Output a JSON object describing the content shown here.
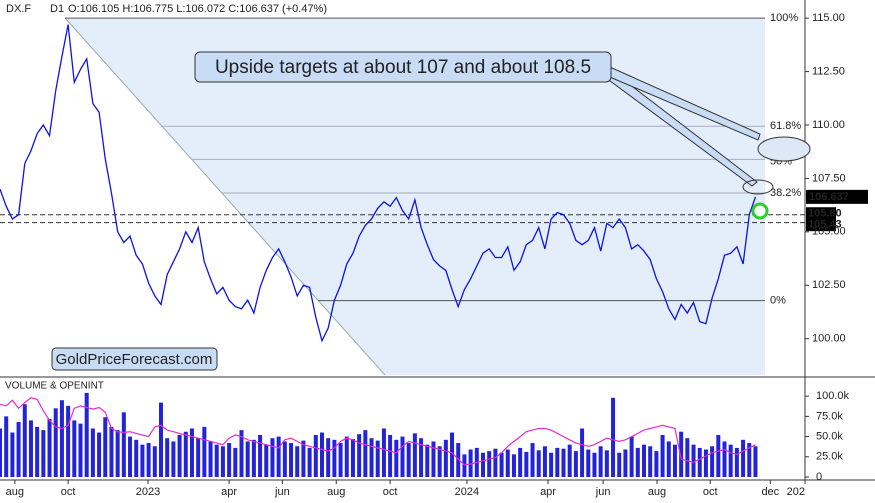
{
  "chart_data": [
    {
      "type": "line",
      "title": "DX.F",
      "subtitle": "D1",
      "ohlc": "O:106.105 H:106.775 L:106.072 C:106.637 (+0.47%)",
      "color": "#0a14e6",
      "xlim": [
        0,
        130
      ],
      "xticks": [
        {
          "value": 2.4,
          "label": "aug"
        },
        {
          "value": 11,
          "label": "oct"
        },
        {
          "value": 23.9,
          "label": "2023"
        },
        {
          "value": 37,
          "label": "apr"
        },
        {
          "value": 45.6,
          "label": "jun"
        },
        {
          "value": 54.3,
          "label": "aug"
        },
        {
          "value": 63,
          "label": "oct"
        },
        {
          "value": 75.4,
          "label": "2024"
        },
        {
          "value": 88.5,
          "label": "apr"
        },
        {
          "value": 97.4,
          "label": "jun"
        },
        {
          "value": 106.1,
          "label": "aug"
        },
        {
          "value": 114.7,
          "label": "oct"
        },
        {
          "value": 124.4,
          "label": "dec"
        },
        {
          "value": 130,
          "label": "202"
        }
      ],
      "ylim": [
        98.3,
        115.85
      ],
      "yticks": [
        {
          "value": 115,
          "label": "115.00"
        },
        {
          "value": 112.5,
          "label": "112.50"
        },
        {
          "value": 110,
          "label": "110.00"
        },
        {
          "value": 107.5,
          "label": "107.50"
        },
        {
          "value": 105,
          "label": "105.00"
        },
        {
          "value": 102.5,
          "label": "102.50"
        },
        {
          "value": 100,
          "label": "100.00"
        }
      ],
      "values": [
        107.0,
        106.2,
        105.6,
        105.8,
        108.2,
        108.8,
        109.6,
        110.0,
        109.5,
        111.6,
        113.2,
        114.7,
        112.0,
        112.6,
        113.1,
        111.0,
        110.6,
        108.4,
        106.8,
        105.0,
        104.5,
        104.8,
        103.9,
        103.5,
        102.6,
        102.0,
        101.6,
        103.0,
        103.6,
        104.2,
        105.0,
        104.5,
        105.2,
        103.6,
        102.8,
        102.1,
        102.4,
        101.8,
        101.5,
        101.4,
        101.8,
        101.2,
        102.4,
        103.2,
        103.8,
        104.2,
        103.6,
        102.9,
        102.0,
        102.5,
        102.4,
        101.0,
        99.9,
        100.5,
        101.8,
        102.5,
        103.5,
        104.0,
        104.8,
        105.3,
        105.6,
        106.1,
        106.4,
        106.2,
        106.6,
        106.0,
        105.6,
        106.5,
        105.2,
        104.4,
        103.7,
        103.4,
        103.2,
        102.3,
        101.5,
        102.3,
        102.8,
        103.4,
        104.0,
        104.2,
        103.8,
        103.8,
        104.3,
        103.2,
        103.6,
        104.4,
        104.6,
        105.2,
        104.2,
        105.6,
        105.9,
        105.8,
        105.4,
        104.6,
        104.4,
        104.6,
        105.2,
        104.1,
        105.4,
        105.2,
        105.6,
        105.2,
        104.2,
        104.4,
        104.1,
        103.7,
        102.8,
        102.2,
        101.4,
        100.9,
        101.6,
        101.2,
        101.7,
        100.8,
        100.7,
        101.9,
        102.8,
        103.9,
        104.0,
        104.3,
        103.5,
        105.8,
        106.637
      ],
      "fib_levels": [
        {
          "label": "100%",
          "value": 115
        },
        {
          "label": "61.8%",
          "value": 109.94
        },
        {
          "label": "50%",
          "value": 108.39
        },
        {
          "label": "38.2%",
          "value": 106.82
        },
        {
          "label": "0%",
          "value": 101.78
        }
      ],
      "levels": [
        {
          "value": 105.8,
          "label": "105.80"
        },
        105.43
      ],
      "annotations": [
        "Upside targets at about 107 and about 108.5",
        "GoldPriceForecast.com"
      ]
    },
    {
      "type": "bar",
      "title": "VOLUME & OPENINT",
      "ylim": [
        0,
        120000
      ],
      "yticks": [
        {
          "value": 100000,
          "label": "100.0k"
        },
        {
          "value": 75000,
          "label": "75.0k"
        },
        {
          "value": 50000,
          "label": "50.0k"
        },
        {
          "value": 25000,
          "label": "25.0k"
        },
        0
      ],
      "series": [
        {
          "kind": "bar",
          "color": "#2323d8",
          "values": [
            60000,
            75000,
            55000,
            68000,
            90000,
            70000,
            62000,
            58000,
            72000,
            85000,
            95000,
            88000,
            70000,
            66000,
            104000,
            60000,
            55000,
            74000,
            62000,
            58000,
            80000,
            50000,
            46000,
            40000,
            42000,
            38000,
            92000,
            48000,
            44000,
            52000,
            56000,
            60000,
            48000,
            62000,
            44000,
            40000,
            38000,
            42000,
            36000,
            58000,
            44000,
            46000,
            52000,
            40000,
            48000,
            50000,
            44000,
            42000,
            38000,
            45000,
            36000,
            52000,
            55000,
            48000,
            46000,
            42000,
            50000,
            47000,
            53000,
            58000,
            48000,
            45000,
            60000,
            52000,
            46000,
            50000,
            42000,
            54000,
            48000,
            40000,
            44000,
            38000,
            46000,
            55000,
            42000,
            28000,
            34000,
            36000,
            30000,
            32000,
            35000,
            30000,
            34000,
            28000,
            36000,
            31000,
            42000,
            33000,
            38000,
            30000,
            36000,
            35000,
            40000,
            32000,
            60000,
            34000,
            30000,
            38000,
            33000,
            98000,
            30000,
            34000,
            50000,
            36000,
            40000,
            38000,
            32000,
            52000,
            44000,
            40000,
            56000,
            48000,
            40000,
            36000,
            34000,
            38000,
            52000,
            44000,
            40000,
            36000,
            46000,
            42000,
            38000
          ]
        },
        {
          "kind": "line",
          "color": "#e62ad2",
          "values": [
            90000,
            88000,
            95000,
            85000,
            92000,
            98000,
            96000,
            82000,
            70000,
            62000,
            60000,
            64000,
            85000,
            88000,
            86000,
            84000,
            86000,
            80000,
            60000,
            56000,
            55000,
            56000,
            54000,
            52000,
            50000,
            62000,
            64000,
            58000,
            56000,
            54000,
            52000,
            50000,
            48000,
            46000,
            44000,
            42000,
            40000,
            48000,
            52000,
            50000,
            46000,
            44000,
            42000,
            40000,
            38000,
            36000,
            46000,
            48000,
            44000,
            40000,
            38000,
            36000,
            34000,
            32000,
            36000,
            44000,
            48000,
            46000,
            42000,
            40000,
            38000,
            36000,
            34000,
            32000,
            30000,
            38000,
            44000,
            42000,
            40000,
            38000,
            36000,
            34000,
            32000,
            30000,
            22000,
            15000,
            16000,
            18000,
            20000,
            22000,
            24000,
            30000,
            38000,
            44000,
            50000,
            56000,
            58000,
            60000,
            60000,
            58000,
            54000,
            50000,
            46000,
            42000,
            40000,
            38000,
            40000,
            44000,
            48000,
            46000,
            44000,
            46000,
            50000,
            54000,
            58000,
            60000,
            62000,
            64000,
            62000,
            60000,
            22000,
            20000,
            18000,
            22000,
            26000,
            30000,
            32000,
            34000,
            30000,
            28000,
            32000,
            36000,
            40000
          ]
        }
      ]
    }
  ]
}
